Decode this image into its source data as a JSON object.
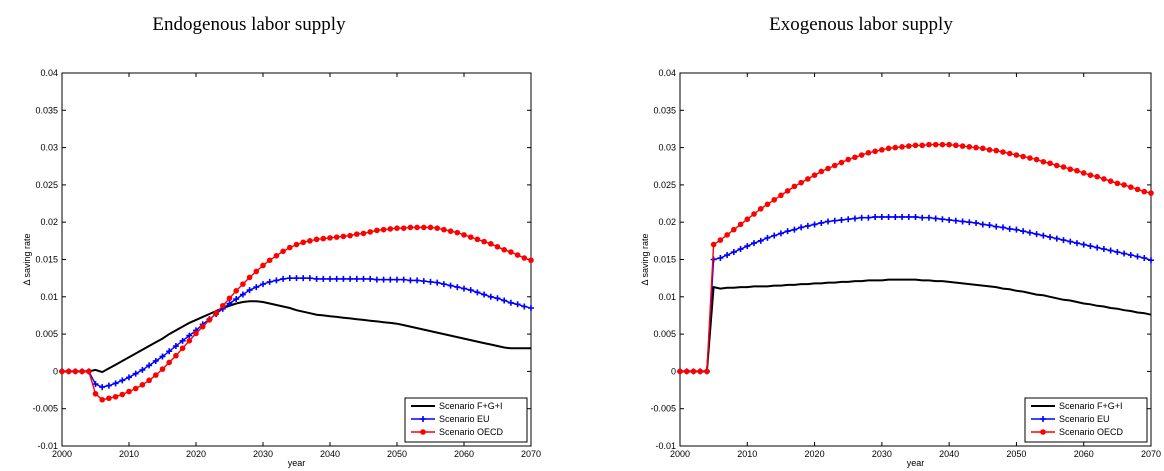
{
  "colors": {
    "axis": "#000000",
    "black": "#000000",
    "blue": "#0000ff",
    "red": "#ff0000"
  },
  "chart_data": [
    {
      "type": "line",
      "title": "Endogenous labor supply",
      "xlabel": "year",
      "ylabel": "Δ saving rate",
      "xlim": [
        2000,
        2070
      ],
      "ylim": [
        -0.01,
        0.04
      ],
      "xticks": [
        "2000",
        "2010",
        "2020",
        "2030",
        "2040",
        "2050",
        "2060",
        "2070"
      ],
      "yticks": [
        "-0.01",
        "-0.005",
        "0",
        "0.005",
        "0.01",
        "0.015",
        "0.02",
        "0.025",
        "0.03",
        "0.035",
        "0.04"
      ],
      "grid": false,
      "legend_position": "bottom-right",
      "x": [
        2000,
        2001,
        2002,
        2003,
        2004,
        2005,
        2006,
        2007,
        2008,
        2009,
        2010,
        2011,
        2012,
        2013,
        2014,
        2015,
        2016,
        2017,
        2018,
        2019,
        2020,
        2021,
        2022,
        2023,
        2024,
        2025,
        2026,
        2027,
        2028,
        2029,
        2030,
        2031,
        2032,
        2033,
        2034,
        2035,
        2036,
        2037,
        2038,
        2039,
        2040,
        2041,
        2042,
        2043,
        2044,
        2045,
        2046,
        2047,
        2048,
        2049,
        2050,
        2051,
        2052,
        2053,
        2054,
        2055,
        2056,
        2057,
        2058,
        2059,
        2060,
        2061,
        2062,
        2063,
        2064,
        2065,
        2066,
        2067,
        2068,
        2069,
        2070
      ],
      "series": [
        {
          "name": "Scenario F+G+I",
          "color": "#000000",
          "marker": "none",
          "values": [
            0,
            0,
            0,
            0,
            0,
            0.0002,
            -0.0001,
            0.0004,
            0.0009,
            0.0014,
            0.0019,
            0.0024,
            0.0029,
            0.0034,
            0.0039,
            0.0044,
            0.005,
            0.0055,
            0.006,
            0.0065,
            0.0069,
            0.0073,
            0.0077,
            0.0081,
            0.0085,
            0.0088,
            0.0091,
            0.0093,
            0.0094,
            0.0094,
            0.0093,
            0.0091,
            0.0089,
            0.0087,
            0.0085,
            0.0082,
            0.008,
            0.0078,
            0.0076,
            0.0075,
            0.0074,
            0.0073,
            0.0072,
            0.0071,
            0.007,
            0.0069,
            0.0068,
            0.0067,
            0.0066,
            0.0065,
            0.0064,
            0.0062,
            0.006,
            0.0058,
            0.0056,
            0.0054,
            0.0052,
            0.005,
            0.0048,
            0.0046,
            0.0044,
            0.0042,
            0.004,
            0.0038,
            0.0036,
            0.0034,
            0.0032,
            0.0031,
            0.0031,
            0.0031,
            0.0031
          ]
        },
        {
          "name": "Scenario EU",
          "color": "#0000ff",
          "marker": "plus",
          "values": [
            0,
            0,
            0,
            0,
            0,
            -0.0017,
            -0.0021,
            -0.0019,
            -0.0016,
            -0.0012,
            -0.0008,
            -0.0003,
            0.0002,
            0.0008,
            0.0014,
            0.002,
            0.0027,
            0.0034,
            0.0041,
            0.0048,
            0.0055,
            0.0063,
            0.007,
            0.0077,
            0.0084,
            0.0091,
            0.0097,
            0.0103,
            0.0109,
            0.0113,
            0.0117,
            0.012,
            0.0122,
            0.0124,
            0.0125,
            0.0125,
            0.0125,
            0.0125,
            0.0124,
            0.0124,
            0.0124,
            0.0124,
            0.0124,
            0.0124,
            0.0124,
            0.0124,
            0.0124,
            0.0123,
            0.0123,
            0.0123,
            0.0123,
            0.0123,
            0.0122,
            0.0122,
            0.0121,
            0.012,
            0.0119,
            0.0117,
            0.0115,
            0.0113,
            0.0111,
            0.0109,
            0.0106,
            0.0103,
            0.01,
            0.0098,
            0.0095,
            0.0092,
            0.009,
            0.0087,
            0.0085
          ]
        },
        {
          "name": "Scenario OECD",
          "color": "#ff0000",
          "marker": "dot",
          "values": [
            0,
            0,
            0,
            0,
            0,
            -0.003,
            -0.0038,
            -0.0036,
            -0.0034,
            -0.0031,
            -0.0027,
            -0.0023,
            -0.0018,
            -0.0012,
            -0.0005,
            0.0003,
            0.0012,
            0.0021,
            0.0031,
            0.0041,
            0.0051,
            0.006,
            0.0069,
            0.0078,
            0.0088,
            0.0098,
            0.0108,
            0.0117,
            0.0126,
            0.0134,
            0.0142,
            0.0149,
            0.0155,
            0.0161,
            0.0166,
            0.017,
            0.0173,
            0.0175,
            0.0177,
            0.0178,
            0.0179,
            0.018,
            0.0181,
            0.0182,
            0.0184,
            0.0185,
            0.0187,
            0.0189,
            0.019,
            0.0191,
            0.0192,
            0.0192,
            0.0193,
            0.0193,
            0.0193,
            0.0193,
            0.0192,
            0.019,
            0.0188,
            0.0186,
            0.0183,
            0.018,
            0.0177,
            0.0174,
            0.0171,
            0.0167,
            0.0163,
            0.016,
            0.0156,
            0.0152,
            0.0149
          ]
        }
      ]
    },
    {
      "type": "line",
      "title": "Exogenous labor supply",
      "xlabel": "year",
      "ylabel": "Δ saving rate",
      "xlim": [
        2000,
        2070
      ],
      "ylim": [
        -0.01,
        0.04
      ],
      "xticks": [
        "2000",
        "2010",
        "2020",
        "2030",
        "2040",
        "2050",
        "2060",
        "2070"
      ],
      "yticks": [
        "-0.01",
        "-0.005",
        "0",
        "0.005",
        "0.01",
        "0.015",
        "0.02",
        "0.025",
        "0.03",
        "0.035",
        "0.04"
      ],
      "grid": false,
      "legend_position": "bottom-right",
      "x": [
        2000,
        2001,
        2002,
        2003,
        2004,
        2005,
        2006,
        2007,
        2008,
        2009,
        2010,
        2011,
        2012,
        2013,
        2014,
        2015,
        2016,
        2017,
        2018,
        2019,
        2020,
        2021,
        2022,
        2023,
        2024,
        2025,
        2026,
        2027,
        2028,
        2029,
        2030,
        2031,
        2032,
        2033,
        2034,
        2035,
        2036,
        2037,
        2038,
        2039,
        2040,
        2041,
        2042,
        2043,
        2044,
        2045,
        2046,
        2047,
        2048,
        2049,
        2050,
        2051,
        2052,
        2053,
        2054,
        2055,
        2056,
        2057,
        2058,
        2059,
        2060,
        2061,
        2062,
        2063,
        2064,
        2065,
        2066,
        2067,
        2068,
        2069,
        2070
      ],
      "series": [
        {
          "name": "Scenario F+G+I",
          "color": "#000000",
          "marker": "none",
          "values": [
            0,
            0,
            0,
            0,
            0,
            0.0113,
            0.0111,
            0.0112,
            0.0112,
            0.0113,
            0.0113,
            0.0114,
            0.0114,
            0.0114,
            0.0115,
            0.0115,
            0.0116,
            0.0116,
            0.0117,
            0.0117,
            0.0118,
            0.0118,
            0.0119,
            0.0119,
            0.012,
            0.012,
            0.0121,
            0.0121,
            0.0122,
            0.0122,
            0.0122,
            0.0123,
            0.0123,
            0.0123,
            0.0123,
            0.0123,
            0.0122,
            0.0122,
            0.0121,
            0.0121,
            0.012,
            0.0119,
            0.0118,
            0.0117,
            0.0116,
            0.0115,
            0.0114,
            0.0113,
            0.0111,
            0.011,
            0.0108,
            0.0107,
            0.0105,
            0.0103,
            0.0102,
            0.01,
            0.0098,
            0.0096,
            0.0095,
            0.0093,
            0.0091,
            0.009,
            0.0088,
            0.0087,
            0.0085,
            0.0084,
            0.0082,
            0.0081,
            0.0079,
            0.0078,
            0.0076
          ]
        },
        {
          "name": "Scenario EU",
          "color": "#0000ff",
          "marker": "plus",
          "values": [
            0,
            0,
            0,
            0,
            0,
            0.015,
            0.0152,
            0.0156,
            0.016,
            0.0164,
            0.0168,
            0.0172,
            0.0175,
            0.0179,
            0.0182,
            0.0185,
            0.0188,
            0.019,
            0.0193,
            0.0195,
            0.0197,
            0.0199,
            0.0201,
            0.0202,
            0.0203,
            0.0204,
            0.0205,
            0.0206,
            0.0206,
            0.0207,
            0.0207,
            0.0207,
            0.0207,
            0.0207,
            0.0207,
            0.0207,
            0.0206,
            0.0206,
            0.0205,
            0.0204,
            0.0203,
            0.0202,
            0.0201,
            0.02,
            0.0199,
            0.0197,
            0.0196,
            0.0194,
            0.0193,
            0.0191,
            0.019,
            0.0188,
            0.0186,
            0.0184,
            0.0182,
            0.018,
            0.0178,
            0.0176,
            0.0174,
            0.0172,
            0.017,
            0.0168,
            0.0166,
            0.0164,
            0.0162,
            0.016,
            0.0158,
            0.0156,
            0.0154,
            0.0152,
            0.0149
          ]
        },
        {
          "name": "Scenario OECD",
          "color": "#ff0000",
          "marker": "dot",
          "values": [
            0,
            0,
            0,
            0,
            0,
            0.017,
            0.0176,
            0.0183,
            0.019,
            0.0197,
            0.0204,
            0.0211,
            0.0218,
            0.0224,
            0.023,
            0.0236,
            0.0242,
            0.0248,
            0.0253,
            0.0258,
            0.0263,
            0.0268,
            0.0272,
            0.0276,
            0.028,
            0.0284,
            0.0287,
            0.029,
            0.0293,
            0.0295,
            0.0297,
            0.0299,
            0.03,
            0.0301,
            0.0302,
            0.0303,
            0.0303,
            0.0304,
            0.0304,
            0.0304,
            0.0304,
            0.0303,
            0.0302,
            0.0301,
            0.03,
            0.0299,
            0.0297,
            0.0296,
            0.0294,
            0.0292,
            0.029,
            0.0288,
            0.0286,
            0.0284,
            0.0281,
            0.0279,
            0.0276,
            0.0274,
            0.0271,
            0.0269,
            0.0266,
            0.0263,
            0.0261,
            0.0258,
            0.0255,
            0.0252,
            0.025,
            0.0247,
            0.0244,
            0.0241,
            0.0239
          ]
        }
      ]
    }
  ]
}
